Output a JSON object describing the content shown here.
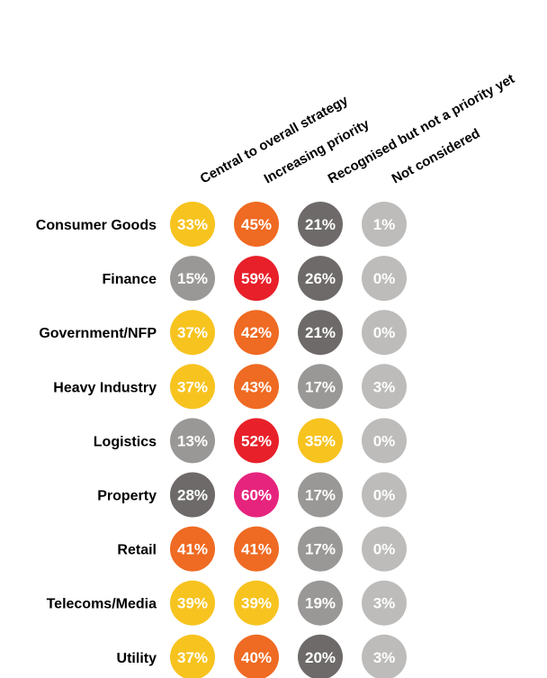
{
  "chart_data": {
    "type": "table",
    "columns": [
      "Central to overall strategy",
      "Increasing priority",
      "Recognised but not a priority yet",
      "Not considered"
    ],
    "rows": [
      {
        "label": "Consumer Goods",
        "values": [
          "33%",
          "45%",
          "21%",
          "1%"
        ],
        "colors": [
          "#F7C31E",
          "#EF6A22",
          "#6D6A69",
          "#BDBCBB"
        ]
      },
      {
        "label": "Finance",
        "values": [
          "15%",
          "59%",
          "26%",
          "0%"
        ],
        "colors": [
          "#9A9897",
          "#E8202A",
          "#6D6A69",
          "#BDBCBB"
        ]
      },
      {
        "label": "Government/NFP",
        "values": [
          "37%",
          "42%",
          "21%",
          "0%"
        ],
        "colors": [
          "#F7C31E",
          "#EF6A22",
          "#6D6A69",
          "#BDBCBB"
        ]
      },
      {
        "label": "Heavy Industry",
        "values": [
          "37%",
          "43%",
          "17%",
          "3%"
        ],
        "colors": [
          "#F7C31E",
          "#EF6A22",
          "#9A9897",
          "#BDBCBB"
        ]
      },
      {
        "label": "Logistics",
        "values": [
          "13%",
          "52%",
          "35%",
          "0%"
        ],
        "colors": [
          "#9A9897",
          "#E8202A",
          "#F7C31E",
          "#BDBCBB"
        ]
      },
      {
        "label": "Property",
        "values": [
          "28%",
          "60%",
          "17%",
          "0%"
        ],
        "colors": [
          "#6D6A69",
          "#E6247D",
          "#9A9897",
          "#BDBCBB"
        ]
      },
      {
        "label": "Retail",
        "values": [
          "41%",
          "41%",
          "17%",
          "0%"
        ],
        "colors": [
          "#EF6A22",
          "#EF6A22",
          "#9A9897",
          "#BDBCBB"
        ]
      },
      {
        "label": "Telecoms/Media",
        "values": [
          "39%",
          "39%",
          "19%",
          "3%"
        ],
        "colors": [
          "#F7C31E",
          "#F7C31E",
          "#9A9897",
          "#BDBCBB"
        ]
      },
      {
        "label": "Utility",
        "values": [
          "37%",
          "40%",
          "20%",
          "3%"
        ],
        "colors": [
          "#F7C31E",
          "#EF6A22",
          "#6D6A69",
          "#BDBCBB"
        ]
      }
    ]
  }
}
